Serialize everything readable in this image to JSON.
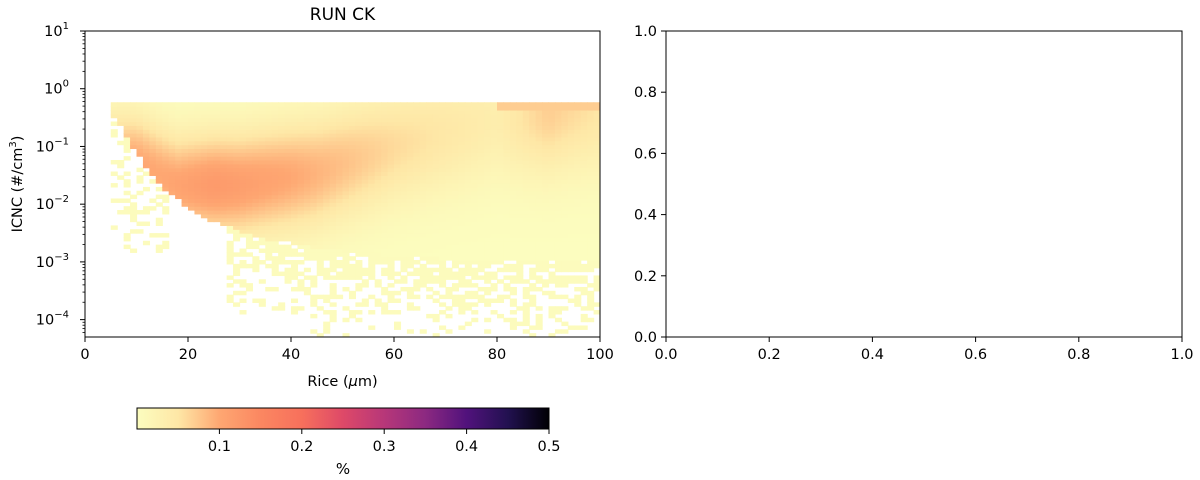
{
  "chart_data": [
    {
      "type": "heatmap",
      "title": "RUN CK",
      "xlabel": "Rice (μm)",
      "xlabel_prefix": "Rice (",
      "xlabel_mu": "μ",
      "xlabel_suffix": "m)",
      "ylabel": "ICNC (#/cm³)",
      "ylabel_prefix": "ICNC (#/cm",
      "ylabel_sup": "3",
      "ylabel_suffix": ")",
      "x_scale": "linear",
      "y_scale": "log",
      "xlim": [
        0,
        100
      ],
      "ylim": [
        5e-05,
        10
      ],
      "x_ticks": [
        0,
        20,
        40,
        60,
        80,
        100
      ],
      "x_tick_labels": [
        "0",
        "20",
        "40",
        "60",
        "80",
        "100"
      ],
      "y_ticks": [
        0.0001,
        0.001,
        0.01,
        0.1,
        1,
        10
      ],
      "y_tick_labels": [
        {
          "base": "10",
          "exp": "−4"
        },
        {
          "base": "10",
          "exp": "−3"
        },
        {
          "base": "10",
          "exp": "−2"
        },
        {
          "base": "10",
          "exp": "−1"
        },
        {
          "base": "10",
          "exp": "0"
        },
        {
          "base": "10",
          "exp": "1"
        }
      ],
      "grid": false,
      "x_bin_width": 1.25,
      "y_bins_per_decade": 15,
      "colormap": "magma_r",
      "colorbar": {
        "label": "%",
        "range": [
          0,
          0.5
        ],
        "ticks": [
          0.1,
          0.2,
          0.3,
          0.4,
          0.5
        ],
        "tick_labels": [
          "0.1",
          "0.2",
          "0.3",
          "0.4",
          "0.5"
        ],
        "orientation": "horizontal",
        "placement": "bottom",
        "stops": [
          [
            0.0,
            "#fcfdbf"
          ],
          [
            0.1,
            "#fee7a6"
          ],
          [
            0.2,
            "#fea772"
          ],
          [
            0.3,
            "#fb8761"
          ],
          [
            0.4,
            "#f7705c"
          ],
          [
            0.5,
            "#de4968"
          ],
          [
            0.6,
            "#b73779"
          ],
          [
            0.7,
            "#8c2981"
          ],
          [
            0.8,
            "#51127c"
          ],
          [
            0.9,
            "#221150"
          ],
          [
            1.0,
            "#000004"
          ]
        ]
      },
      "distribution": {
        "ridge_points": [
          [
            10,
            0.055
          ],
          [
            18,
            0.022
          ],
          [
            30,
            0.022
          ],
          [
            45,
            0.035
          ],
          [
            60,
            0.1
          ],
          [
            80,
            0.3
          ],
          [
            95,
            0.5
          ]
        ],
        "peak_values": [
          [
            15,
            0.1
          ],
          [
            25,
            0.12
          ],
          [
            40,
            0.1
          ],
          [
            60,
            0.06
          ],
          [
            80,
            0.035
          ],
          [
            90,
            0.07
          ],
          [
            100,
            0.05
          ]
        ],
        "upper_bound": 0.6,
        "lower_bound_curve": [
          [
            6,
            0.3
          ],
          [
            10,
            0.075
          ],
          [
            15,
            0.02
          ],
          [
            20,
            0.009
          ],
          [
            25,
            0.005
          ],
          [
            30,
            0.0035
          ],
          [
            35,
            0.0025
          ],
          [
            45,
            0.0018
          ],
          [
            55,
            0.0014
          ],
          [
            70,
            0.00115
          ],
          [
            85,
            0.001
          ],
          [
            100,
            0.001
          ]
        ],
        "sparse_floor": 5e-05
      }
    },
    {
      "type": "scatter",
      "title": "",
      "xlabel": "",
      "ylabel": "",
      "xlim": [
        0.0,
        1.0
      ],
      "ylim": [
        0.0,
        1.0
      ],
      "x_ticks": [
        0.0,
        0.2,
        0.4,
        0.6,
        0.8,
        1.0
      ],
      "x_tick_labels": [
        "0.0",
        "0.2",
        "0.4",
        "0.6",
        "0.8",
        "1.0"
      ],
      "y_ticks": [
        0.0,
        0.2,
        0.4,
        0.6,
        0.8,
        1.0
      ],
      "y_tick_labels": [
        "0.0",
        "0.2",
        "0.4",
        "0.6",
        "0.8",
        "1.0"
      ],
      "grid": false,
      "series": []
    }
  ]
}
